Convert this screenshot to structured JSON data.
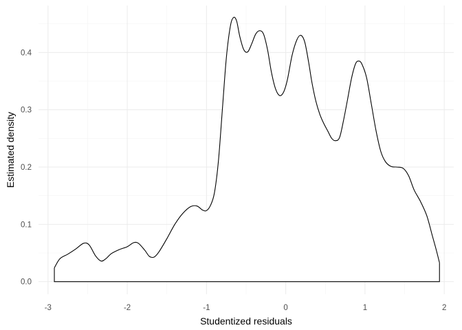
{
  "chart_data": {
    "type": "area",
    "xlabel": "Studentized residuals",
    "ylabel": "Estimated density",
    "xlim": [
      -3.12,
      2.12
    ],
    "ylim": [
      -0.022,
      0.482
    ],
    "x_ticks": [
      -3,
      -2,
      -1,
      0,
      1,
      2
    ],
    "x_tick_labels": [
      "-3",
      "-2",
      "-1",
      "0",
      "1",
      "2"
    ],
    "y_ticks": [
      0.0,
      0.1,
      0.2,
      0.3,
      0.4
    ],
    "y_tick_labels": [
      "0.0",
      "0.1",
      "0.2",
      "0.3",
      "0.4"
    ],
    "grid": true,
    "line_color": "#000000",
    "fill_color": "#ffffff",
    "series": [
      {
        "points": [
          [
            -2.92,
            0.024
          ],
          [
            -2.85,
            0.04
          ],
          [
            -2.75,
            0.048
          ],
          [
            -2.65,
            0.057
          ],
          [
            -2.55,
            0.067
          ],
          [
            -2.48,
            0.064
          ],
          [
            -2.4,
            0.045
          ],
          [
            -2.33,
            0.036
          ],
          [
            -2.27,
            0.04
          ],
          [
            -2.2,
            0.049
          ],
          [
            -2.1,
            0.056
          ],
          [
            -2.0,
            0.061
          ],
          [
            -1.92,
            0.068
          ],
          [
            -1.86,
            0.067
          ],
          [
            -1.78,
            0.055
          ],
          [
            -1.72,
            0.044
          ],
          [
            -1.66,
            0.043
          ],
          [
            -1.6,
            0.052
          ],
          [
            -1.5,
            0.075
          ],
          [
            -1.4,
            0.1
          ],
          [
            -1.3,
            0.119
          ],
          [
            -1.2,
            0.131
          ],
          [
            -1.12,
            0.132
          ],
          [
            -1.05,
            0.125
          ],
          [
            -1.0,
            0.124
          ],
          [
            -0.95,
            0.133
          ],
          [
            -0.9,
            0.155
          ],
          [
            -0.85,
            0.21
          ],
          [
            -0.8,
            0.3
          ],
          [
            -0.75,
            0.39
          ],
          [
            -0.7,
            0.445
          ],
          [
            -0.66,
            0.461
          ],
          [
            -0.62,
            0.455
          ],
          [
            -0.58,
            0.428
          ],
          [
            -0.53,
            0.405
          ],
          [
            -0.48,
            0.401
          ],
          [
            -0.43,
            0.415
          ],
          [
            -0.38,
            0.432
          ],
          [
            -0.33,
            0.438
          ],
          [
            -0.28,
            0.432
          ],
          [
            -0.23,
            0.405
          ],
          [
            -0.18,
            0.365
          ],
          [
            -0.13,
            0.337
          ],
          [
            -0.08,
            0.325
          ],
          [
            -0.03,
            0.33
          ],
          [
            0.02,
            0.352
          ],
          [
            0.08,
            0.395
          ],
          [
            0.14,
            0.422
          ],
          [
            0.19,
            0.43
          ],
          [
            0.24,
            0.418
          ],
          [
            0.29,
            0.382
          ],
          [
            0.33,
            0.348
          ],
          [
            0.38,
            0.315
          ],
          [
            0.43,
            0.292
          ],
          [
            0.48,
            0.276
          ],
          [
            0.53,
            0.263
          ],
          [
            0.58,
            0.25
          ],
          [
            0.63,
            0.246
          ],
          [
            0.68,
            0.252
          ],
          [
            0.73,
            0.282
          ],
          [
            0.78,
            0.318
          ],
          [
            0.83,
            0.355
          ],
          [
            0.88,
            0.38
          ],
          [
            0.92,
            0.385
          ],
          [
            0.96,
            0.38
          ],
          [
            1.02,
            0.356
          ],
          [
            1.08,
            0.31
          ],
          [
            1.14,
            0.263
          ],
          [
            1.2,
            0.227
          ],
          [
            1.26,
            0.209
          ],
          [
            1.33,
            0.201
          ],
          [
            1.4,
            0.2
          ],
          [
            1.48,
            0.198
          ],
          [
            1.55,
            0.185
          ],
          [
            1.62,
            0.16
          ],
          [
            1.7,
            0.14
          ],
          [
            1.78,
            0.115
          ],
          [
            1.85,
            0.08
          ],
          [
            1.9,
            0.055
          ],
          [
            1.94,
            0.033
          ]
        ]
      }
    ]
  }
}
